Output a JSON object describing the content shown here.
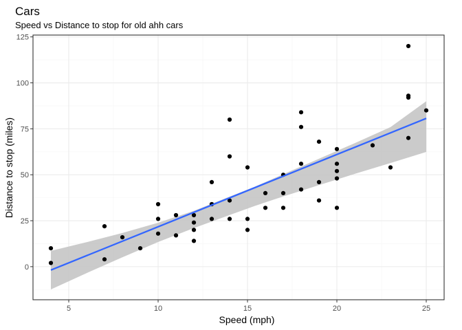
{
  "chart_data": {
    "type": "scatter",
    "title": "Cars",
    "subtitle": "Speed vs Distance to stop for old ahh cars",
    "xlabel": "Speed (mph)",
    "ylabel": "Distance to stop (miles)",
    "xlim": [
      3.0,
      26.0
    ],
    "ylim": [
      -18,
      126
    ],
    "grid": true,
    "theme": "bw",
    "x_ticks": [
      5,
      10,
      15,
      20,
      25
    ],
    "x_tick_labels": [
      "5",
      "10",
      "15",
      "20",
      "25"
    ],
    "y_ticks": [
      0,
      25,
      50,
      75,
      100,
      125
    ],
    "y_tick_labels": [
      "0",
      "25",
      "50",
      "75",
      "100",
      "125"
    ],
    "points": [
      [
        4,
        2
      ],
      [
        4,
        10
      ],
      [
        7,
        4
      ],
      [
        7,
        22
      ],
      [
        8,
        16
      ],
      [
        9,
        10
      ],
      [
        10,
        18
      ],
      [
        10,
        26
      ],
      [
        10,
        34
      ],
      [
        11,
        17
      ],
      [
        11,
        28
      ],
      [
        12,
        14
      ],
      [
        12,
        20
      ],
      [
        12,
        24
      ],
      [
        12,
        28
      ],
      [
        13,
        26
      ],
      [
        13,
        34
      ],
      [
        13,
        34
      ],
      [
        13,
        46
      ],
      [
        14,
        26
      ],
      [
        14,
        36
      ],
      [
        14,
        60
      ],
      [
        14,
        80
      ],
      [
        15,
        20
      ],
      [
        15,
        26
      ],
      [
        15,
        54
      ],
      [
        16,
        32
      ],
      [
        16,
        40
      ],
      [
        17,
        32
      ],
      [
        17,
        40
      ],
      [
        17,
        50
      ],
      [
        18,
        42
      ],
      [
        18,
        56
      ],
      [
        18,
        76
      ],
      [
        18,
        84
      ],
      [
        19,
        36
      ],
      [
        19,
        46
      ],
      [
        19,
        68
      ],
      [
        20,
        32
      ],
      [
        20,
        48
      ],
      [
        20,
        52
      ],
      [
        20,
        56
      ],
      [
        20,
        64
      ],
      [
        22,
        66
      ],
      [
        23,
        54
      ],
      [
        24,
        70
      ],
      [
        24,
        92
      ],
      [
        24,
        93
      ],
      [
        24,
        120
      ],
      [
        25,
        85
      ]
    ],
    "fit": {
      "method": "lm",
      "intercept": -17.58,
      "slope": 3.93,
      "x_range": [
        4,
        25
      ],
      "band": [
        [
          4,
          -12.4,
          8.6
        ],
        [
          6,
          -3.5,
          13.3
        ],
        [
          8,
          5.1,
          18.3
        ],
        [
          10,
          13.4,
          23.9
        ],
        [
          12,
          21.0,
          30.4
        ],
        [
          14,
          28.1,
          38.1
        ],
        [
          15.4,
          33.0,
          43.5
        ],
        [
          17,
          38.2,
          50.3
        ],
        [
          19,
          44.4,
          58.7
        ],
        [
          21,
          50.5,
          67.2
        ],
        [
          23,
          56.4,
          75.9
        ],
        [
          25,
          62.4,
          90.0
        ]
      ]
    },
    "colors": {
      "points": "#000000",
      "fit_line": "#3366ff",
      "band": "#c2c2c2",
      "grid_major": "#ebebeb",
      "grid_minor": "#f5f5f5",
      "panel_border": "#333333",
      "tick_text": "#4d4d4d"
    }
  }
}
